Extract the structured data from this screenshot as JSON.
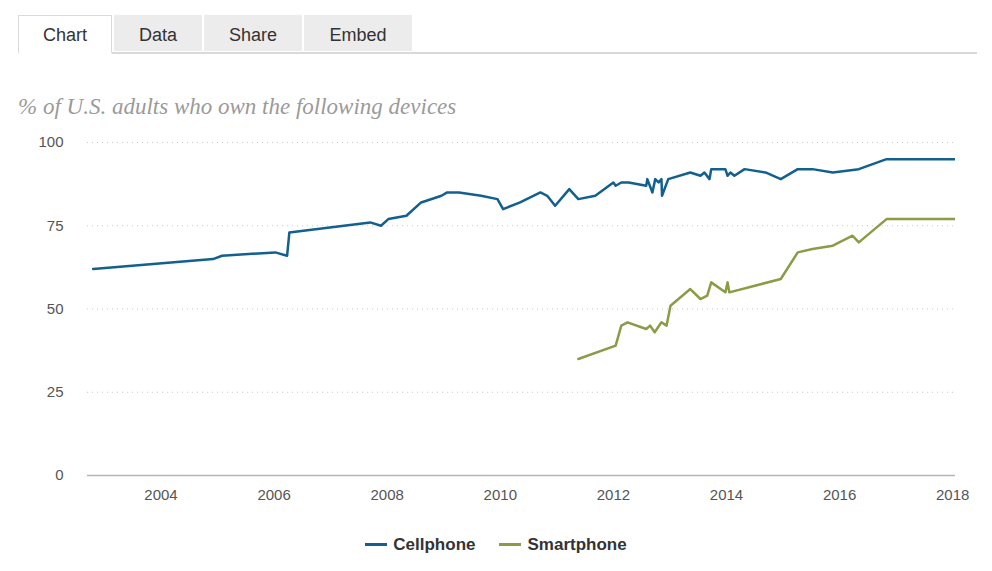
{
  "tabs": [
    "Chart",
    "Data",
    "Share",
    "Embed"
  ],
  "chart_data": {
    "type": "line",
    "subtitle": "% of U.S. adults who own the following devices",
    "xlim": [
      2002.7,
      2018.05
    ],
    "xticks": [
      2004,
      2006,
      2008,
      2010,
      2012,
      2014,
      2016,
      2018
    ],
    "ylim": [
      0,
      100
    ],
    "yticks": [
      0,
      25,
      50,
      75,
      100
    ],
    "grid": true,
    "legend": "bottom",
    "series": [
      {
        "name": "Cellphone",
        "color": "#13608f",
        "x": [
          2002.8,
          2004.92,
          2005.08,
          2006.02,
          2006.23,
          2006.27,
          2007.7,
          2007.89,
          2008.02,
          2008.34,
          2008.6,
          2008.96,
          2009.06,
          2009.27,
          2009.66,
          2009.95,
          2010.05,
          2010.35,
          2010.71,
          2010.83,
          2010.97,
          2011.22,
          2011.38,
          2011.68,
          2012.0,
          2012.04,
          2012.14,
          2012.27,
          2012.58,
          2012.6,
          2012.69,
          2012.74,
          2012.8,
          2012.85,
          2012.86,
          2012.97,
          2013.36,
          2013.54,
          2013.61,
          2013.7,
          2013.73,
          2013.98,
          2014.02,
          2014.07,
          2014.14,
          2014.32,
          2014.69,
          2014.96,
          2015.26,
          2015.52,
          2015.88,
          2016.34,
          2016.83,
          2018.04
        ],
        "values": [
          62,
          65,
          66,
          67,
          66,
          73,
          76,
          75,
          77,
          78,
          82,
          84,
          85,
          85,
          84,
          83,
          80,
          82,
          85,
          84,
          81,
          86,
          83,
          84,
          88,
          87,
          88,
          88,
          87,
          89,
          85,
          89,
          88,
          89,
          84,
          89,
          91,
          90,
          91,
          89,
          92,
          92,
          90,
          91,
          90,
          92,
          91,
          89,
          92,
          92,
          91,
          92,
          95,
          95
        ]
      },
      {
        "name": "Smartphone",
        "color": "#8a9c45",
        "x": [
          2011.38,
          2012.04,
          2012.14,
          2012.25,
          2012.58,
          2012.65,
          2012.73,
          2012.85,
          2012.94,
          2013.01,
          2013.36,
          2013.54,
          2013.66,
          2013.73,
          2013.98,
          2014.02,
          2014.05,
          2014.96,
          2015.26,
          2015.52,
          2015.88,
          2016.23,
          2016.34,
          2016.83,
          2018.04
        ],
        "values": [
          35,
          39,
          45,
          46,
          44,
          45,
          43,
          46,
          45,
          51,
          56,
          53,
          54,
          58,
          55,
          58,
          55,
          59,
          67,
          68,
          69,
          72,
          70,
          77,
          77
        ]
      }
    ]
  }
}
